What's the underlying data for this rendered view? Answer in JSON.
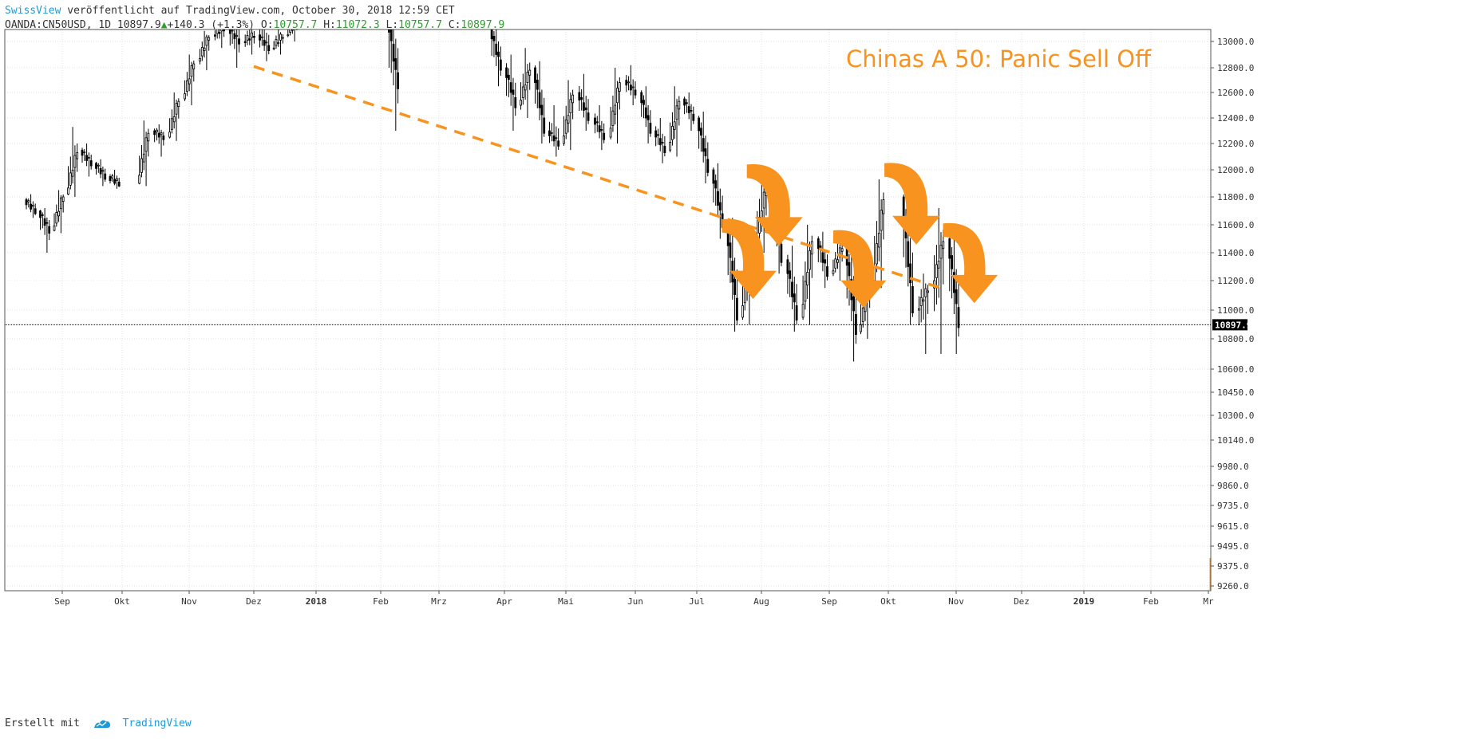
{
  "header": {
    "author": "SwissView",
    "published_text": "veröffentlicht auf TradingView.com, October 30, 2018 12:59 CET",
    "symbol": "OANDA:CN50USD, 1D",
    "last": "10897.9",
    "change": "+140.3 (+1.3%)",
    "o_label": "O:",
    "o_value": "10757.7",
    "h_label": "H:",
    "h_value": "11072.3",
    "l_label": "L:",
    "l_value": "10757.7",
    "c_label": "C:",
    "c_value": "10897.9"
  },
  "annotation": {
    "title": "Chinas A 50: Panic Sell Off",
    "color": "#f7931e"
  },
  "footer": {
    "created_with": "Erstellt mit",
    "brand": "TradingView"
  },
  "chart_data": {
    "type": "candlestick",
    "title": "Chinas A 50: Panic Sell Off",
    "y_ticks": [
      "13000.0",
      "12800.0",
      "12600.0",
      "12400.0",
      "12200.0",
      "12000.0",
      "11800.0",
      "11600.0",
      "11400.0",
      "11200.0",
      "11000.0",
      "10800.0",
      "10600.0",
      "10450.0",
      "10300.0",
      "10140.0",
      "9980.0",
      "9860.0",
      "9735.0",
      "9615.0",
      "9495.0",
      "9375.0",
      "9260.0"
    ],
    "x_ticks": [
      "Sep",
      "Okt",
      "Nov",
      "Dez",
      "2018",
      "Feb",
      "Mrz",
      "Apr",
      "Mai",
      "Jun",
      "Jul",
      "Aug",
      "Sep",
      "Okt",
      "Nov",
      "Dez",
      "2019",
      "Feb",
      "Mr"
    ],
    "x_bold": [
      "2018",
      "2019"
    ],
    "current_price": "10897.9",
    "grid": true,
    "colors": {
      "candle": "#000000",
      "trend": "#f7931e",
      "grid": "#e0e0e0",
      "price_line": "#000000"
    },
    "trendline": {
      "start_date": "2017-12-01",
      "start_price": 12810,
      "end_date": "2018-10-25",
      "end_price": 11150,
      "style": "dashed"
    },
    "arrows_after": [
      "2018-07-25",
      "2018-07-13",
      "2018-09-03",
      "2018-10-01",
      "2018-10-26"
    ],
    "weekly_ohlc": [
      [
        "2017-08-14",
        11780,
        11820,
        11650,
        11700
      ],
      [
        "2017-08-21",
        11700,
        11720,
        11400,
        11560
      ],
      [
        "2017-08-28",
        11560,
        11850,
        11540,
        11820
      ],
      [
        "2017-09-04",
        11820,
        12330,
        11800,
        12150
      ],
      [
        "2017-09-11",
        12150,
        12200,
        11950,
        12050
      ],
      [
        "2017-09-18",
        12050,
        12080,
        11880,
        11950
      ],
      [
        "2017-09-25",
        11950,
        12000,
        11860,
        11900
      ],
      [
        "2017-10-09",
        11900,
        12380,
        11880,
        12300
      ],
      [
        "2017-10-16",
        12300,
        12350,
        12100,
        12250
      ],
      [
        "2017-10-23",
        12250,
        12600,
        12220,
        12550
      ],
      [
        "2017-10-30",
        12550,
        12900,
        12500,
        12850
      ],
      [
        "2017-11-06",
        12850,
        13080,
        12780,
        13050
      ],
      [
        "2017-11-13",
        13050,
        13150,
        12950,
        13100
      ],
      [
        "2017-11-20",
        13100,
        13400,
        12800,
        13000
      ],
      [
        "2017-11-27",
        13000,
        13150,
        12900,
        13050
      ],
      [
        "2017-12-04",
        13050,
        13200,
        12850,
        12950
      ],
      [
        "2017-12-11",
        12950,
        13100,
        12900,
        13050
      ],
      [
        "2017-12-18",
        13050,
        13200,
        13000,
        13150
      ],
      [
        "2018-02-05",
        13200,
        13300,
        12300,
        12650
      ],
      [
        "2018-03-26",
        13100,
        13150,
        12650,
        12800
      ],
      [
        "2018-04-02",
        12800,
        12900,
        12300,
        12500
      ],
      [
        "2018-04-09",
        12500,
        12950,
        12400,
        12800
      ],
      [
        "2018-04-16",
        12800,
        12850,
        12200,
        12300
      ],
      [
        "2018-04-23",
        12300,
        12500,
        12100,
        12200
      ],
      [
        "2018-04-30",
        12200,
        12700,
        12150,
        12600
      ],
      [
        "2018-05-07",
        12600,
        12750,
        12300,
        12400
      ],
      [
        "2018-05-14",
        12400,
        12500,
        12150,
        12250
      ],
      [
        "2018-05-21",
        12250,
        12800,
        12200,
        12700
      ],
      [
        "2018-05-28",
        12700,
        12820,
        12500,
        12600
      ],
      [
        "2018-06-04",
        12600,
        12650,
        12200,
        12300
      ],
      [
        "2018-06-11",
        12300,
        12400,
        12050,
        12150
      ],
      [
        "2018-06-18",
        12150,
        12650,
        12100,
        12550
      ],
      [
        "2018-06-25",
        12550,
        12600,
        12300,
        12400
      ],
      [
        "2018-07-02",
        12400,
        12450,
        11900,
        12000
      ],
      [
        "2018-07-09",
        12000,
        12050,
        11500,
        11600
      ],
      [
        "2018-07-16",
        11600,
        11650,
        10850,
        10950
      ],
      [
        "2018-07-23",
        10950,
        11550,
        10900,
        11450
      ],
      [
        "2018-07-30",
        11450,
        12030,
        11400,
        11900
      ],
      [
        "2018-08-06",
        11900,
        11950,
        11250,
        11350
      ],
      [
        "2018-08-13",
        11350,
        11450,
        10850,
        10950
      ],
      [
        "2018-08-20",
        10950,
        11600,
        10900,
        11500
      ],
      [
        "2018-08-27",
        11500,
        11550,
        11150,
        11250
      ],
      [
        "2018-09-03",
        11250,
        11500,
        11200,
        11450
      ],
      [
        "2018-09-10",
        11450,
        11500,
        10650,
        10850
      ],
      [
        "2018-09-17",
        10850,
        11300,
        10800,
        11200
      ],
      [
        "2018-09-24",
        11200,
        11930,
        11150,
        11800
      ],
      [
        "2018-10-08",
        11800,
        11850,
        10900,
        11000
      ],
      [
        "2018-10-15",
        11000,
        11250,
        10700,
        11150
      ],
      [
        "2018-10-22",
        11150,
        11720,
        10700,
        11500
      ],
      [
        "2018-10-29",
        11500,
        11550,
        10700,
        10897.9
      ]
    ]
  }
}
